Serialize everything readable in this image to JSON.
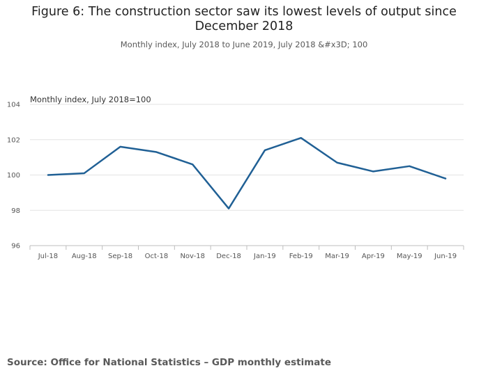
{
  "chart_data": {
    "type": "line",
    "title": "Figure 6: The construction sector saw its lowest levels of output since December 2018",
    "subtitle": "Monthly index, July 2018 to June 2019, July 2018 &#x3D; 100",
    "ylabel": "Monthly index, July 2018=100",
    "xlabel": "",
    "categories": [
      "Jul-18",
      "Aug-18",
      "Sep-18",
      "Oct-18",
      "Nov-18",
      "Dec-18",
      "Jan-19",
      "Feb-19",
      "Mar-19",
      "Apr-19",
      "May-19",
      "Jun-19"
    ],
    "series": [
      {
        "name": "Construction",
        "color": "#206095",
        "values": [
          100.0,
          100.1,
          101.6,
          101.3,
          100.6,
          98.1,
          101.4,
          102.1,
          100.7,
          100.2,
          100.5,
          99.8
        ]
      }
    ],
    "ylim": [
      96,
      104
    ],
    "yticks": [
      "96",
      "98",
      "100",
      "102",
      "104"
    ],
    "grid": true,
    "source": "Source: Office for National Statistics – GDP monthly estimate"
  }
}
